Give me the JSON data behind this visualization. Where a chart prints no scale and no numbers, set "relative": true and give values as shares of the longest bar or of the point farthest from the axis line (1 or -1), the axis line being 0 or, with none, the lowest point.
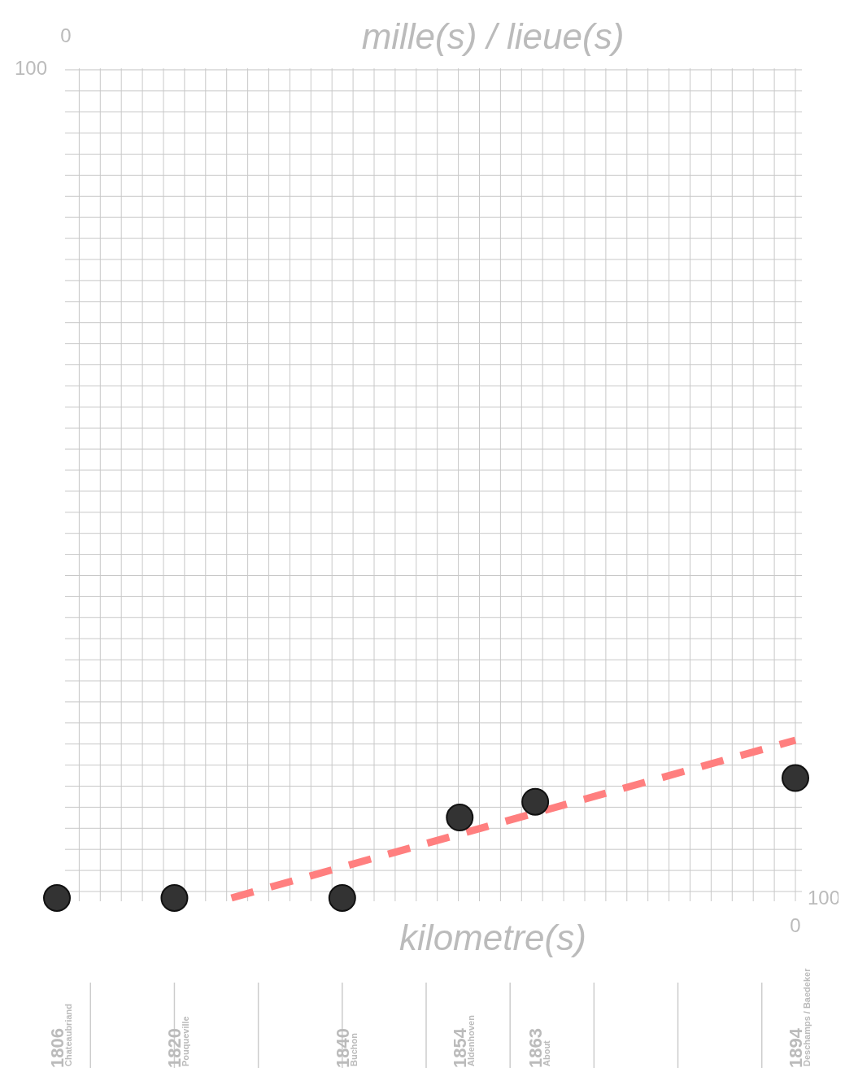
{
  "chart_data": {
    "type": "scatter",
    "title": "mille(s) / lieue(s)",
    "xlabel": "kilometre(s)",
    "relative": true,
    "grid": true,
    "xlim": [
      1806,
      1894
    ],
    "xticks": [
      1806,
      1820,
      1840,
      1854,
      1863,
      1894
    ],
    "series": [
      {
        "color": "#333333",
        "marker": "circle",
        "x": [
          1806,
          1820,
          1840,
          1854,
          1863,
          1894
        ],
        "values": [
          0,
          0,
          0,
          0.51,
          0.61,
          0.76
        ]
      },
      {
        "type": "line",
        "color": "#ff7f7f",
        "line_style": "dashed",
        "marker": "none",
        "x": [
          1826.8,
          1894
        ],
        "values": [
          0,
          1
        ]
      }
    ],
    "annotations": [
      "0",
      "100",
      "100",
      "0",
      "Chateaubriand",
      "Pouqueville",
      "Buchon",
      "Aldenhoven",
      "About",
      "Deschamps / Baedeker"
    ]
  }
}
